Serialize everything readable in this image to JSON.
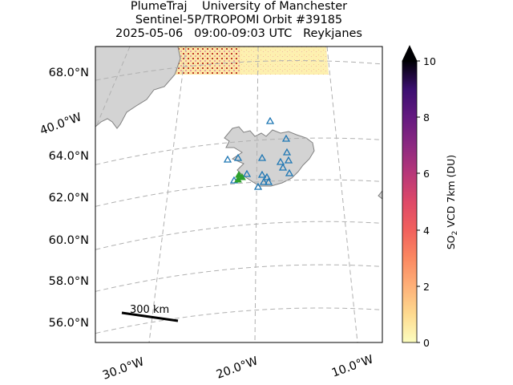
{
  "title": {
    "line1": "PlumeTraj    University of Manchester",
    "line2": "Sentinel-5P/TROPOMI Orbit #39185",
    "line3": "2025-05-06   09:00-09:03 UTC   Reykjanes"
  },
  "lat_labels": [
    "68.0°N",
    "64.0°N",
    "62.0°N",
    "60.0°N",
    "58.0°N",
    "56.0°N"
  ],
  "lon_labels": [
    "40.0°W",
    "30.0°W",
    "20.0°W",
    "10.0°W"
  ],
  "scale_bar_label": "300 km",
  "colorbar": {
    "label_prefix": "SO",
    "label_sub": "2",
    "label_suffix": " VCD 7km (DU)",
    "ticks": [
      "0",
      "2",
      "4",
      "6",
      "8",
      "10"
    ],
    "min": 0,
    "max": 10,
    "extend": "max",
    "colormap": "magma_r"
  },
  "colors": {
    "land": "#d3d3d3",
    "coast": "#808080",
    "grid": "#b0b0b0",
    "volcano_marker": "#1f77b4",
    "source_marker": "#2ca02c"
  },
  "markers": {
    "volcano_symbol": "open-triangle",
    "source_symbol": "triangle"
  }
}
